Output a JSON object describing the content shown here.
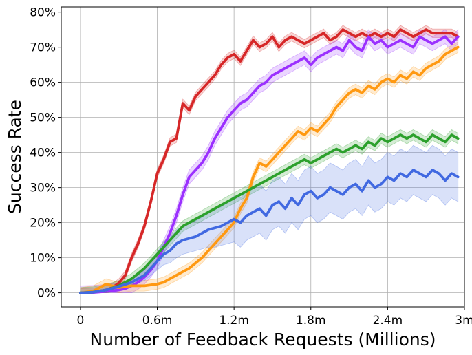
{
  "chart_data": {
    "type": "line",
    "title": "",
    "xlabel": "Number of Feedback Requests (Millions)",
    "ylabel": "Success Rate",
    "xlim": [
      -0.15,
      3.0
    ],
    "ylim": [
      -0.04,
      0.815
    ],
    "xticks": [
      0,
      0.6,
      1.2,
      1.8,
      2.4,
      3.0
    ],
    "xtick_labels": [
      "0",
      "0.6m",
      "1.2m",
      "1.8m",
      "2.4m",
      "3m"
    ],
    "yticks": [
      0,
      0.1,
      0.2,
      0.3,
      0.4,
      0.5,
      0.6,
      0.7,
      0.8
    ],
    "ytick_labels": [
      "0%",
      "10%",
      "20%",
      "30%",
      "40%",
      "50%",
      "60%",
      "70%",
      "80%"
    ],
    "grid": true,
    "legend": "none",
    "series": [
      {
        "color": "#d62728",
        "x": [
          0,
          0.1,
          0.2,
          0.25,
          0.3,
          0.35,
          0.4,
          0.45,
          0.5,
          0.55,
          0.6,
          0.65,
          0.7,
          0.75,
          0.8,
          0.85,
          0.9,
          0.95,
          1.0,
          1.05,
          1.1,
          1.15,
          1.2,
          1.25,
          1.3,
          1.35,
          1.4,
          1.45,
          1.5,
          1.55,
          1.6,
          1.65,
          1.7,
          1.75,
          1.8,
          1.85,
          1.9,
          1.95,
          2.0,
          2.05,
          2.1,
          2.15,
          2.2,
          2.25,
          2.3,
          2.35,
          2.4,
          2.45,
          2.5,
          2.55,
          2.6,
          2.65,
          2.7,
          2.75,
          2.8,
          2.85,
          2.9,
          2.95
        ],
        "y": [
          0,
          0.002,
          0.008,
          0.015,
          0.028,
          0.05,
          0.1,
          0.14,
          0.19,
          0.26,
          0.34,
          0.38,
          0.43,
          0.44,
          0.54,
          0.52,
          0.56,
          0.58,
          0.6,
          0.62,
          0.65,
          0.67,
          0.68,
          0.66,
          0.69,
          0.72,
          0.7,
          0.71,
          0.73,
          0.7,
          0.72,
          0.73,
          0.72,
          0.71,
          0.72,
          0.73,
          0.74,
          0.72,
          0.73,
          0.75,
          0.74,
          0.73,
          0.74,
          0.73,
          0.74,
          0.73,
          0.74,
          0.73,
          0.75,
          0.74,
          0.73,
          0.74,
          0.75,
          0.74,
          0.74,
          0.74,
          0.74,
          0.73
        ],
        "band": 0.012
      },
      {
        "color": "#9b30ff",
        "x": [
          0,
          0.1,
          0.2,
          0.3,
          0.35,
          0.4,
          0.45,
          0.5,
          0.55,
          0.6,
          0.65,
          0.7,
          0.75,
          0.8,
          0.85,
          0.9,
          0.95,
          1.0,
          1.05,
          1.1,
          1.15,
          1.2,
          1.25,
          1.3,
          1.35,
          1.4,
          1.45,
          1.5,
          1.55,
          1.6,
          1.65,
          1.7,
          1.75,
          1.8,
          1.85,
          1.9,
          1.95,
          2.0,
          2.05,
          2.1,
          2.15,
          2.2,
          2.25,
          2.3,
          2.35,
          2.4,
          2.45,
          2.5,
          2.55,
          2.6,
          2.65,
          2.7,
          2.75,
          2.8,
          2.85,
          2.9,
          2.95
        ],
        "y": [
          0,
          0.001,
          0.004,
          0.008,
          0.012,
          0.02,
          0.03,
          0.045,
          0.065,
          0.09,
          0.13,
          0.17,
          0.22,
          0.28,
          0.33,
          0.35,
          0.37,
          0.4,
          0.44,
          0.47,
          0.5,
          0.52,
          0.54,
          0.55,
          0.57,
          0.59,
          0.6,
          0.62,
          0.63,
          0.64,
          0.65,
          0.66,
          0.67,
          0.65,
          0.67,
          0.68,
          0.69,
          0.7,
          0.69,
          0.72,
          0.7,
          0.69,
          0.73,
          0.71,
          0.72,
          0.7,
          0.71,
          0.72,
          0.71,
          0.7,
          0.73,
          0.72,
          0.71,
          0.72,
          0.73,
          0.71,
          0.73
        ],
        "band": 0.02
      },
      {
        "color": "#ff9912",
        "x": [
          0,
          0.1,
          0.15,
          0.2,
          0.25,
          0.3,
          0.4,
          0.5,
          0.6,
          0.65,
          0.7,
          0.75,
          0.8,
          0.85,
          0.9,
          0.95,
          1.0,
          1.05,
          1.1,
          1.15,
          1.2,
          1.25,
          1.3,
          1.35,
          1.4,
          1.45,
          1.5,
          1.55,
          1.6,
          1.65,
          1.7,
          1.75,
          1.8,
          1.85,
          1.9,
          1.95,
          2.0,
          2.05,
          2.1,
          2.15,
          2.2,
          2.25,
          2.3,
          2.35,
          2.4,
          2.45,
          2.5,
          2.55,
          2.6,
          2.65,
          2.7,
          2.75,
          2.8,
          2.85,
          2.9,
          2.95
        ],
        "y": [
          0,
          0.005,
          0.015,
          0.025,
          0.02,
          0.015,
          0.02,
          0.02,
          0.025,
          0.03,
          0.04,
          0.05,
          0.06,
          0.07,
          0.085,
          0.1,
          0.12,
          0.14,
          0.16,
          0.18,
          0.2,
          0.24,
          0.27,
          0.33,
          0.37,
          0.36,
          0.38,
          0.4,
          0.42,
          0.44,
          0.46,
          0.45,
          0.47,
          0.46,
          0.48,
          0.5,
          0.53,
          0.55,
          0.57,
          0.58,
          0.57,
          0.59,
          0.58,
          0.6,
          0.61,
          0.6,
          0.62,
          0.61,
          0.63,
          0.62,
          0.64,
          0.65,
          0.66,
          0.68,
          0.69,
          0.7
        ],
        "band": 0.015
      },
      {
        "color": "#2ca02c",
        "x": [
          0,
          0.1,
          0.2,
          0.3,
          0.35,
          0.4,
          0.45,
          0.5,
          0.55,
          0.6,
          0.65,
          0.7,
          0.75,
          0.8,
          0.85,
          0.9,
          0.95,
          1.0,
          1.05,
          1.1,
          1.15,
          1.2,
          1.25,
          1.3,
          1.35,
          1.4,
          1.45,
          1.5,
          1.55,
          1.6,
          1.65,
          1.7,
          1.75,
          1.8,
          1.85,
          1.9,
          1.95,
          2.0,
          2.05,
          2.1,
          2.15,
          2.2,
          2.25,
          2.3,
          2.35,
          2.4,
          2.45,
          2.5,
          2.55,
          2.6,
          2.65,
          2.7,
          2.75,
          2.8,
          2.85,
          2.9,
          2.95
        ],
        "y": [
          0,
          0.002,
          0.008,
          0.02,
          0.03,
          0.04,
          0.055,
          0.07,
          0.09,
          0.11,
          0.13,
          0.15,
          0.17,
          0.19,
          0.2,
          0.21,
          0.22,
          0.23,
          0.24,
          0.25,
          0.26,
          0.27,
          0.28,
          0.29,
          0.3,
          0.31,
          0.32,
          0.33,
          0.34,
          0.35,
          0.36,
          0.37,
          0.38,
          0.37,
          0.38,
          0.39,
          0.4,
          0.41,
          0.4,
          0.41,
          0.42,
          0.41,
          0.43,
          0.42,
          0.44,
          0.43,
          0.44,
          0.45,
          0.44,
          0.45,
          0.44,
          0.43,
          0.45,
          0.44,
          0.43,
          0.45,
          0.44
        ],
        "band": 0.015
      },
      {
        "color": "#4169e1",
        "x": [
          0,
          0.1,
          0.2,
          0.3,
          0.4,
          0.5,
          0.55,
          0.6,
          0.65,
          0.7,
          0.75,
          0.8,
          0.85,
          0.9,
          0.95,
          1.0,
          1.05,
          1.1,
          1.15,
          1.2,
          1.25,
          1.3,
          1.35,
          1.4,
          1.45,
          1.5,
          1.55,
          1.6,
          1.65,
          1.7,
          1.75,
          1.8,
          1.85,
          1.9,
          1.95,
          2.0,
          2.05,
          2.1,
          2.15,
          2.2,
          2.25,
          2.3,
          2.35,
          2.4,
          2.45,
          2.5,
          2.55,
          2.6,
          2.65,
          2.7,
          2.75,
          2.8,
          2.85,
          2.9,
          2.95
        ],
        "y": [
          0,
          0.002,
          0.008,
          0.018,
          0.03,
          0.05,
          0.07,
          0.09,
          0.11,
          0.12,
          0.14,
          0.15,
          0.155,
          0.16,
          0.17,
          0.18,
          0.185,
          0.19,
          0.2,
          0.21,
          0.2,
          0.22,
          0.23,
          0.24,
          0.22,
          0.25,
          0.26,
          0.24,
          0.27,
          0.25,
          0.28,
          0.29,
          0.27,
          0.28,
          0.3,
          0.29,
          0.28,
          0.3,
          0.31,
          0.29,
          0.32,
          0.3,
          0.31,
          0.33,
          0.32,
          0.34,
          0.33,
          0.35,
          0.34,
          0.33,
          0.35,
          0.34,
          0.32,
          0.34,
          0.33
        ],
        "band_lower": [
          0,
          0.001,
          0.005,
          0.012,
          0.02,
          0.035,
          0.05,
          0.065,
          0.08,
          0.085,
          0.1,
          0.11,
          0.115,
          0.12,
          0.125,
          0.13,
          0.13,
          0.135,
          0.14,
          0.145,
          0.13,
          0.15,
          0.16,
          0.17,
          0.15,
          0.18,
          0.19,
          0.17,
          0.2,
          0.18,
          0.21,
          0.22,
          0.2,
          0.21,
          0.23,
          0.22,
          0.21,
          0.23,
          0.24,
          0.22,
          0.25,
          0.23,
          0.24,
          0.26,
          0.25,
          0.27,
          0.26,
          0.28,
          0.27,
          0.26,
          0.28,
          0.27,
          0.25,
          0.27,
          0.26
        ],
        "band_upper": [
          0,
          0.003,
          0.012,
          0.025,
          0.04,
          0.065,
          0.09,
          0.115,
          0.14,
          0.155,
          0.18,
          0.19,
          0.2,
          0.205,
          0.215,
          0.23,
          0.24,
          0.245,
          0.26,
          0.275,
          0.27,
          0.29,
          0.3,
          0.31,
          0.29,
          0.32,
          0.33,
          0.31,
          0.34,
          0.32,
          0.35,
          0.36,
          0.34,
          0.35,
          0.37,
          0.36,
          0.35,
          0.37,
          0.38,
          0.36,
          0.39,
          0.37,
          0.38,
          0.4,
          0.39,
          0.41,
          0.4,
          0.42,
          0.41,
          0.4,
          0.42,
          0.41,
          0.39,
          0.41,
          0.4
        ]
      }
    ]
  }
}
